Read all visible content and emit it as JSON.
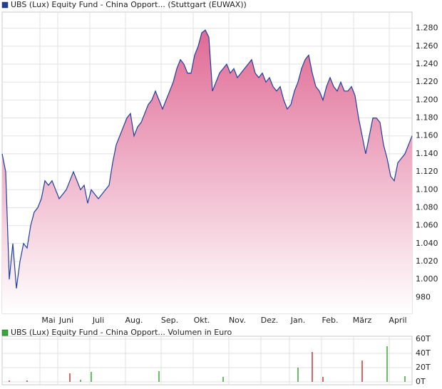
{
  "chart_data": [
    {
      "type": "area",
      "series": [
        {
          "name": "UBS (Lux) Equity Fund - China Opport... (Stuttgart (EUWAX))",
          "color": "#1f3fa0",
          "values": [
            1140,
            1120,
            1000,
            1040,
            990,
            1020,
            1040,
            1035,
            1060,
            1075,
            1080,
            1090,
            1110,
            1105,
            1110,
            1100,
            1090,
            1095,
            1100,
            1110,
            1120,
            1110,
            1100,
            1105,
            1085,
            1100,
            1095,
            1090,
            1095,
            1100,
            1105,
            1130,
            1150,
            1160,
            1170,
            1180,
            1185,
            1160,
            1170,
            1175,
            1185,
            1195,
            1200,
            1210,
            1200,
            1190,
            1200,
            1210,
            1220,
            1235,
            1245,
            1240,
            1230,
            1230,
            1250,
            1260,
            1275,
            1278,
            1270,
            1210,
            1220,
            1230,
            1235,
            1240,
            1230,
            1235,
            1225,
            1230,
            1235,
            1240,
            1245,
            1230,
            1225,
            1230,
            1220,
            1225,
            1215,
            1210,
            1215,
            1200,
            1190,
            1195,
            1210,
            1220,
            1235,
            1245,
            1250,
            1230,
            1215,
            1210,
            1200,
            1215,
            1225,
            1215,
            1210,
            1220,
            1210,
            1210,
            1215,
            1205,
            1180,
            1160,
            1140,
            1160,
            1180,
            1180,
            1175,
            1150,
            1135,
            1115,
            1110,
            1130,
            1135,
            1140,
            1150,
            1160
          ]
        }
      ],
      "categories": [
        null,
        null,
        null,
        null,
        null,
        null,
        null,
        null,
        null,
        null,
        null,
        null,
        null,
        "Mai",
        null,
        null,
        null,
        null,
        "Juni",
        null,
        null,
        null,
        null,
        null,
        null,
        null,
        null,
        "Juli",
        null,
        null,
        null,
        null,
        null,
        null,
        null,
        null,
        null,
        "Aug.",
        null,
        null,
        null,
        null,
        null,
        null,
        null,
        null,
        null,
        "Sep.",
        null,
        null,
        null,
        null,
        null,
        null,
        null,
        null,
        "Okt.",
        null,
        null,
        null,
        null,
        null,
        null,
        null,
        null,
        null,
        "Nov.",
        null,
        null,
        null,
        null,
        null,
        null,
        null,
        null,
        "Dez.",
        null,
        null,
        null,
        null,
        null,
        null,
        null,
        "Jan.",
        null,
        null,
        null,
        null,
        null,
        null,
        null,
        null,
        "Feb.",
        null,
        null,
        null,
        null,
        null,
        null,
        null,
        null,
        "März",
        null,
        null,
        null,
        null,
        null,
        null,
        null,
        null,
        null,
        "April",
        null,
        null,
        null,
        null
      ],
      "ylim": [
        962,
        1298
      ],
      "yticks": [
        980,
        {
          "value": 1000,
          "label": "1.000"
        },
        {
          "value": 1020,
          "label": "1.020"
        },
        {
          "value": 1040,
          "label": "1.040"
        },
        {
          "value": 1060,
          "label": "1.060"
        },
        {
          "value": 1080,
          "label": "1.080"
        },
        {
          "value": 1100,
          "label": "1.100"
        },
        {
          "value": 1120,
          "label": "1.120"
        },
        {
          "value": 1140,
          "label": "1.140"
        },
        {
          "value": 1160,
          "label": "1.160"
        },
        {
          "value": 1180,
          "label": "1.180"
        },
        {
          "value": 1200,
          "label": "1.200"
        },
        {
          "value": 1220,
          "label": "1.220"
        },
        {
          "value": 1240,
          "label": "1.240"
        },
        {
          "value": 1260,
          "label": "1.260"
        },
        {
          "value": 1280,
          "label": "1.280"
        }
      ],
      "grid": true
    },
    {
      "type": "bar",
      "series": [
        {
          "name": "UBS (Lux) Equity Fund - China Opport... Volumen in Euro",
          "color": "#33aa33",
          "values": [
            0,
            0,
            2,
            0,
            0,
            0,
            0,
            2,
            0,
            0,
            0,
            0,
            0,
            0,
            0,
            0,
            0,
            0,
            0,
            12,
            0,
            0,
            3,
            0,
            0,
            14,
            0,
            0,
            0,
            0,
            0,
            0,
            0,
            0,
            0,
            0,
            0,
            0,
            0,
            0,
            0,
            0,
            0,
            0,
            15,
            0,
            0,
            0,
            0,
            0,
            0,
            0,
            0,
            0,
            0,
            0,
            0,
            0,
            0,
            0,
            0,
            0,
            7,
            0,
            0,
            0,
            0,
            0,
            0,
            0,
            0,
            0,
            0,
            0,
            0,
            0,
            0,
            0,
            0,
            0,
            0,
            0,
            0,
            20,
            0,
            0,
            0,
            42,
            0,
            0,
            7,
            0,
            0,
            0,
            0,
            0,
            0,
            0,
            0,
            0,
            0,
            30,
            0,
            0,
            0,
            0,
            0,
            0,
            50,
            0,
            0,
            0,
            0,
            8,
            0,
            0
          ],
          "colors": [
            null,
            null,
            "#cc3333",
            null,
            null,
            null,
            null,
            "#cc3333",
            null,
            null,
            null,
            null,
            null,
            null,
            null,
            null,
            null,
            null,
            null,
            "#cc3333",
            null,
            null,
            "#33aa33",
            null,
            null,
            "#33aa33",
            null,
            null,
            null,
            null,
            null,
            null,
            null,
            null,
            null,
            null,
            null,
            null,
            null,
            null,
            null,
            null,
            null,
            null,
            "#33aa33",
            null,
            null,
            null,
            null,
            null,
            null,
            null,
            null,
            null,
            null,
            null,
            null,
            null,
            null,
            null,
            null,
            null,
            "#33aa33",
            null,
            null,
            null,
            null,
            null,
            null,
            null,
            null,
            null,
            null,
            null,
            null,
            null,
            null,
            null,
            null,
            null,
            null,
            null,
            null,
            "#33aa33",
            null,
            null,
            null,
            "#cc3333",
            null,
            null,
            "#cc3333",
            null,
            null,
            null,
            null,
            null,
            null,
            null,
            null,
            null,
            null,
            "#cc3333",
            null,
            null,
            null,
            null,
            null,
            null,
            "#33aa33",
            null,
            null,
            null,
            null,
            "#33aa33",
            null,
            null
          ]
        }
      ],
      "ylim": [
        -4,
        64
      ],
      "yticks": [
        {
          "value": 0,
          "label": "0T"
        },
        {
          "value": 20,
          "label": "20T"
        },
        {
          "value": 40,
          "label": "40T"
        },
        {
          "value": 60,
          "label": "60T"
        }
      ],
      "grid": true
    }
  ]
}
